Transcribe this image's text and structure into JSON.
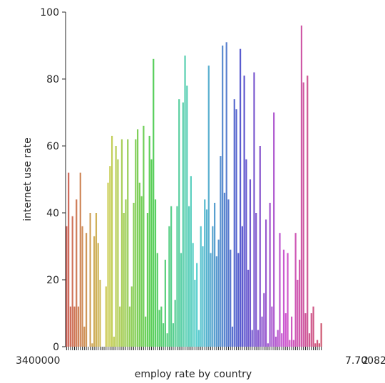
{
  "chart_data": {
    "type": "bar",
    "xlabel": "employ rate by country",
    "ylabel": "internet use rate",
    "ylim": [
      0,
      100
    ],
    "yticks": [
      0,
      20,
      40,
      60,
      80,
      100
    ],
    "x_tick_left_text": "3400000",
    "x_tick_right_text": "2",
    "x_tick_right_tail": "7.70082",
    "grid": false,
    "legend": "none",
    "palette": "husl (one hue per category, red → orange → olive → green → teal → blue → purple → pink)",
    "values": [
      36,
      52,
      12,
      39,
      12,
      44,
      12,
      52,
      36,
      6,
      34,
      0,
      40,
      1,
      33,
      40,
      31,
      20,
      0,
      0,
      18,
      49,
      54,
      63,
      3,
      60,
      56,
      12,
      62,
      40,
      44,
      62,
      12,
      18,
      43,
      62,
      65,
      49,
      45,
      66,
      9,
      40,
      63,
      56,
      86,
      44,
      28,
      11,
      12,
      7,
      26,
      4,
      36,
      42,
      7,
      14,
      42,
      74,
      28,
      73,
      87,
      78,
      42,
      51,
      31,
      20,
      25,
      5,
      36,
      30,
      44,
      41,
      84,
      28,
      36,
      43,
      27,
      32,
      57,
      90,
      46,
      91,
      44,
      29,
      6,
      74,
      71,
      28,
      89,
      36,
      81,
      56,
      23,
      50,
      5,
      82,
      40,
      5,
      60,
      9,
      16,
      38,
      1,
      43,
      12,
      70,
      3,
      5,
      34,
      4,
      29,
      10,
      28,
      2,
      9,
      2,
      34,
      20,
      26,
      96,
      79,
      10,
      81,
      4,
      10,
      12,
      1,
      2,
      1,
      7
    ]
  }
}
